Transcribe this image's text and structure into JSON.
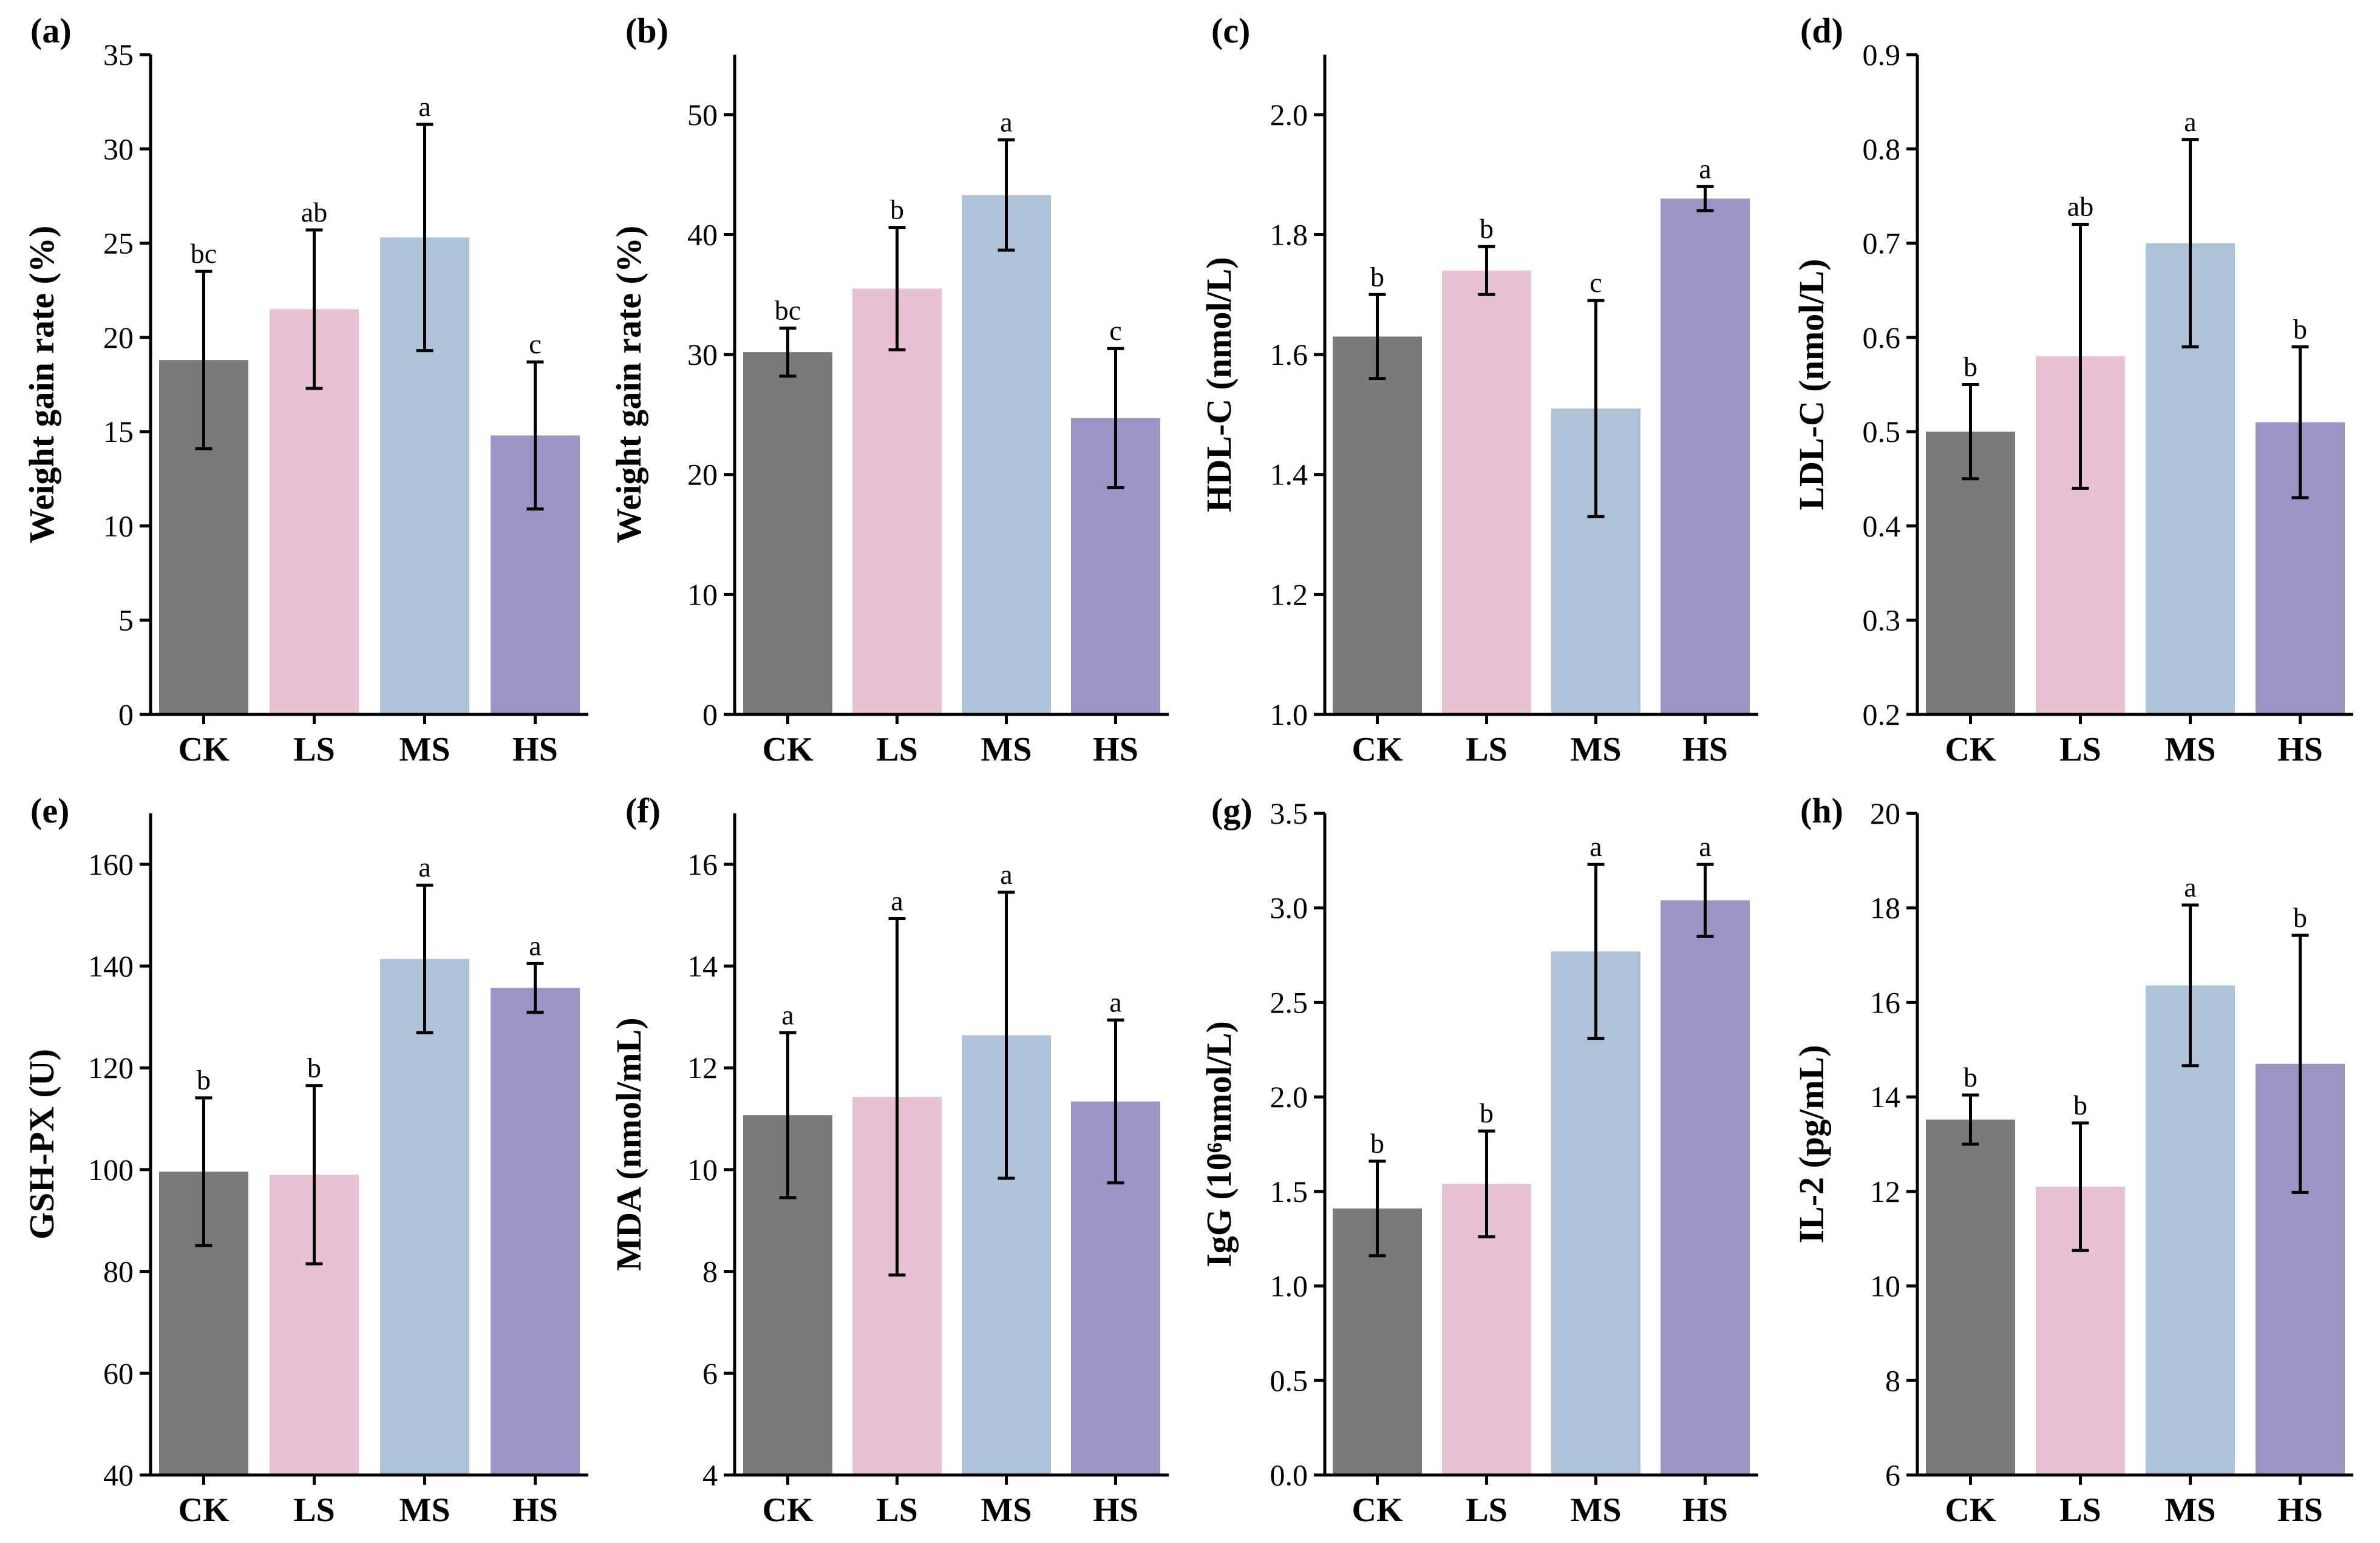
{
  "colors": {
    "CK": "#7b797c",
    "LS": "#e8c1d3",
    "MS": "#aec3d8",
    "HS": "#9a95c5"
  },
  "chart_data": [
    {
      "panel": "(a)",
      "type": "bar",
      "ylabel": "Weight gain rate (%)",
      "categories": [
        "CK",
        "LS",
        "MS",
        "HS"
      ],
      "values": [
        18.8,
        21.5,
        25.3,
        14.8
      ],
      "errors": [
        4.7,
        4.2,
        6.0,
        3.9
      ],
      "significance": [
        "bc",
        "ab",
        "a",
        "c"
      ],
      "ylim": [
        0,
        35
      ],
      "yticks": [
        "0",
        "5",
        "10",
        "15",
        "20",
        "25",
        "30",
        "35"
      ]
    },
    {
      "panel": "(b)",
      "type": "bar",
      "ylabel": "Weight gain rate (%)",
      "categories": [
        "CK",
        "LS",
        "MS",
        "HS"
      ],
      "values": [
        30.2,
        35.5,
        43.3,
        24.7
      ],
      "errors": [
        2.0,
        5.1,
        4.6,
        5.8
      ],
      "significance": [
        "bc",
        "b",
        "a",
        "c"
      ],
      "ylim": [
        0,
        55
      ],
      "yticks": [
        "0",
        "10",
        "20",
        "30",
        "40",
        "50"
      ]
    },
    {
      "panel": "(c)",
      "type": "bar",
      "ylabel": "HDL-C (nmol/L)",
      "categories": [
        "CK",
        "LS",
        "MS",
        "HS"
      ],
      "values": [
        1.63,
        1.74,
        1.51,
        1.86
      ],
      "errors": [
        0.07,
        0.04,
        0.18,
        0.02
      ],
      "significance": [
        "b",
        "b",
        "c",
        "a"
      ],
      "ylim": [
        1.0,
        2.1
      ],
      "yticks": [
        "1.0",
        "1.2",
        "1.4",
        "1.6",
        "1.8",
        "2.0"
      ]
    },
    {
      "panel": "(d)",
      "type": "bar",
      "ylabel": "LDL-C (nmol/L)",
      "categories": [
        "CK",
        "LS",
        "MS",
        "HS"
      ],
      "values": [
        0.5,
        0.58,
        0.7,
        0.51
      ],
      "errors": [
        0.05,
        0.14,
        0.11,
        0.08
      ],
      "significance": [
        "b",
        "ab",
        "a",
        "b"
      ],
      "ylim": [
        0.2,
        0.9
      ],
      "yticks": [
        "0.2",
        "0.3",
        "0.4",
        "0.5",
        "0.6",
        "0.7",
        "0.8",
        "0.9"
      ]
    },
    {
      "panel": "(e)",
      "type": "bar",
      "ylabel": "GSH-PX (U)",
      "categories": [
        "CK",
        "LS",
        "MS",
        "HS"
      ],
      "values": [
        99.6,
        99.0,
        141.4,
        135.7
      ],
      "errors": [
        14.5,
        17.5,
        14.5,
        4.8
      ],
      "significance": [
        "b",
        "b",
        "a",
        "a"
      ],
      "ylim": [
        40,
        170
      ],
      "yticks": [
        "40",
        "60",
        "80",
        "100",
        "120",
        "140",
        "160"
      ]
    },
    {
      "panel": "(f)",
      "type": "bar",
      "ylabel": "MDA (nmol/mL)",
      "categories": [
        "CK",
        "LS",
        "MS",
        "HS"
      ],
      "values": [
        11.07,
        11.43,
        12.64,
        11.34
      ],
      "errors": [
        1.62,
        3.5,
        2.81,
        1.6
      ],
      "significance": [
        "a",
        "a",
        "a",
        "a"
      ],
      "ylim": [
        4,
        17
      ],
      "yticks": [
        "4",
        "6",
        "8",
        "10",
        "12",
        "14",
        "16"
      ]
    },
    {
      "panel": "(g)",
      "type": "bar",
      "ylabel": "IgG (10⁶nmol/L)",
      "categories": [
        "CK",
        "LS",
        "MS",
        "HS"
      ],
      "values": [
        1.41,
        1.54,
        2.77,
        3.04
      ],
      "errors": [
        0.25,
        0.28,
        0.46,
        0.19
      ],
      "significance": [
        "b",
        "b",
        "a",
        "a"
      ],
      "ylim": [
        0,
        3.5
      ],
      "yticks": [
        "0.0",
        "0.5",
        "1.0",
        "1.5",
        "2.0",
        "2.5",
        "3.0",
        "3.5"
      ]
    },
    {
      "panel": "(h)",
      "type": "bar",
      "ylabel": "IL-2 (pg/mL)",
      "categories": [
        "CK",
        "LS",
        "MS",
        "HS"
      ],
      "values": [
        13.52,
        12.1,
        16.36,
        14.7
      ],
      "errors": [
        0.52,
        1.35,
        1.7,
        2.72
      ],
      "significance": [
        "b",
        "b",
        "a",
        "b"
      ],
      "ylim": [
        6,
        20
      ],
      "yticks": [
        "6",
        "8",
        "10",
        "12",
        "14",
        "16",
        "18",
        "20"
      ]
    }
  ]
}
